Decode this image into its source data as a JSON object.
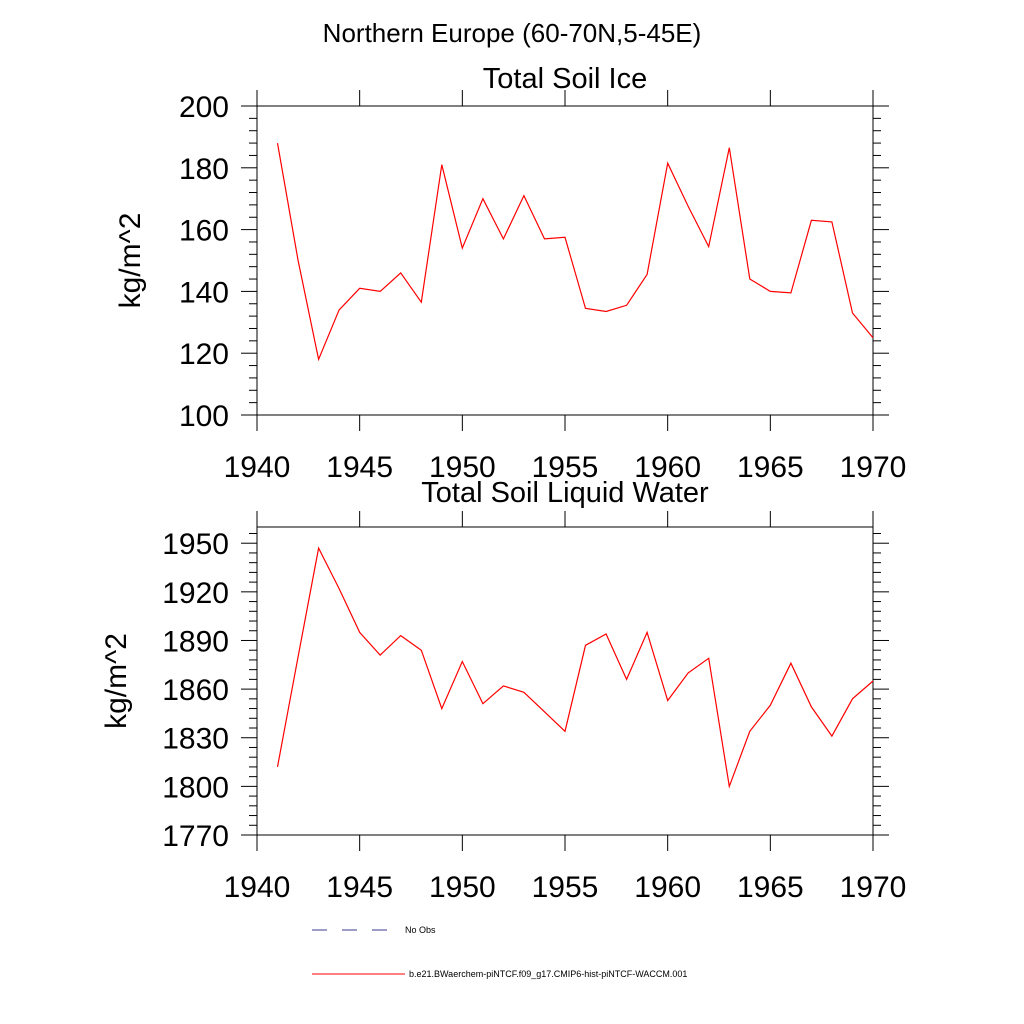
{
  "page_title": "Northern Europe (60-70N,5-45E)",
  "colors": {
    "series": "#ff0000",
    "obs": "#3a3a8c",
    "axis": "#000000"
  },
  "legend": {
    "obs_label": "No Obs",
    "series_label": "b.e21.BWaerchem-piNTCF.f09_g17.CMIP6-hist-piNTCF-WACCM.001"
  },
  "chart_data": [
    {
      "type": "line",
      "title": "Total Soil Ice",
      "ylabel": "kg/m^2",
      "xlim": [
        1940,
        1970
      ],
      "ylim": [
        100,
        200
      ],
      "xticks": [
        1940,
        1945,
        1950,
        1955,
        1960,
        1965,
        1970
      ],
      "yticks": [
        100,
        120,
        140,
        160,
        180,
        200
      ],
      "series": [
        {
          "x": [
            1941,
            1942,
            1943,
            1944,
            1945,
            1946,
            1947,
            1948,
            1949,
            1950,
            1951,
            1952,
            1953,
            1954,
            1955,
            1956,
            1957,
            1958,
            1959,
            1960,
            1961,
            1962,
            1963,
            1964,
            1965,
            1966,
            1967,
            1968,
            1969,
            1970
          ],
          "values": [
            188,
            150,
            118,
            134,
            141,
            140,
            146,
            136.5,
            181,
            154,
            170,
            157,
            171,
            157,
            157.5,
            134.5,
            133.5,
            135.5,
            145.5,
            181.5,
            167.5,
            154.5,
            186.5,
            144,
            140,
            139.5,
            163,
            162.5,
            133,
            125
          ]
        }
      ]
    },
    {
      "type": "line",
      "title": "Total Soil Liquid Water",
      "ylabel": "kg/m^2",
      "xlim": [
        1940,
        1970
      ],
      "ylim": [
        1770,
        1960
      ],
      "xticks": [
        1940,
        1945,
        1950,
        1955,
        1960,
        1965,
        1970
      ],
      "yticks": [
        1770,
        1800,
        1830,
        1860,
        1890,
        1920,
        1950
      ],
      "series": [
        {
          "x": [
            1941,
            1942,
            1943,
            1944,
            1945,
            1946,
            1947,
            1948,
            1949,
            1950,
            1951,
            1952,
            1953,
            1954,
            1955,
            1956,
            1957,
            1958,
            1959,
            1960,
            1961,
            1962,
            1963,
            1964,
            1965,
            1966,
            1967,
            1968,
            1969,
            1970
          ],
          "values": [
            1812,
            1880,
            1947,
            1922,
            1895,
            1881,
            1893,
            1884,
            1848,
            1877,
            1851,
            1862,
            1858,
            1846,
            1834,
            1887,
            1894,
            1866,
            1895,
            1853,
            1870,
            1879,
            1800,
            1834,
            1850,
            1876,
            1849,
            1831,
            1854,
            1865
          ]
        }
      ]
    }
  ]
}
